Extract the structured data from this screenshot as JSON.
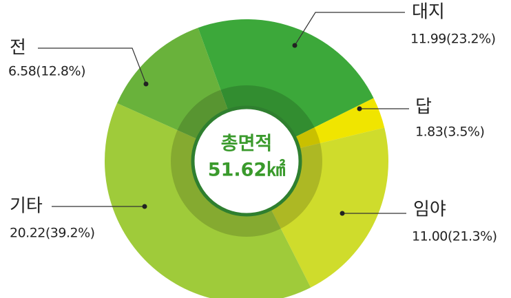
{
  "chart_data": {
    "type": "pie",
    "center_title": "총면적",
    "center_value": "51.62㎢",
    "categories": [
      "대지",
      "답",
      "임야",
      "기타",
      "전"
    ],
    "values": [
      11.99,
      1.83,
      11.0,
      20.22,
      6.58
    ],
    "value_labels": [
      "11.99(23.2%)",
      "1.83(3.5%)",
      "11.00(21.3%)",
      "20.22(39.2%)",
      "6.58(12.8%)"
    ],
    "colors": [
      "#3ca83a",
      "#f0e500",
      "#cfdc2c",
      "#9fcb3a",
      "#69b23b"
    ]
  }
}
